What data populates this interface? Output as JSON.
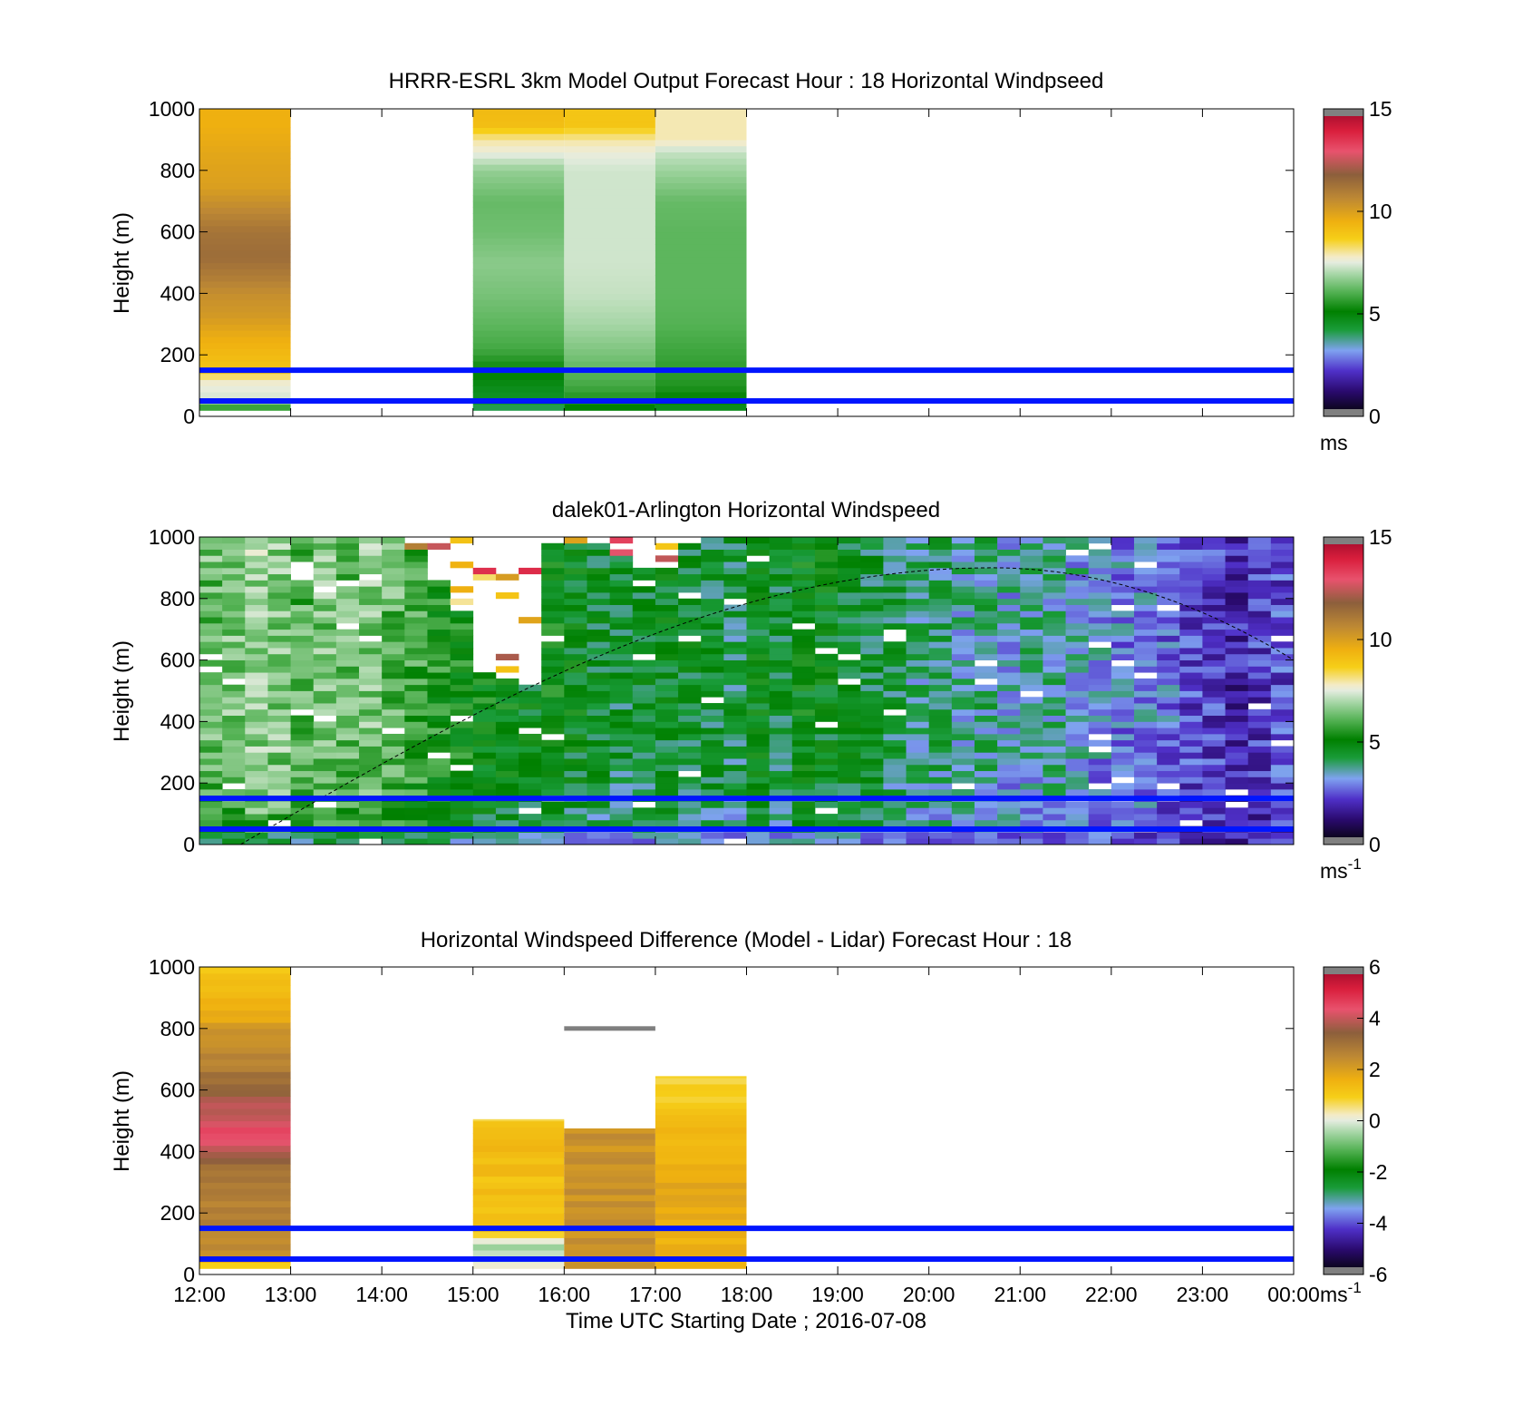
{
  "figure": {
    "x_ticks": [
      "12:00",
      "13:00",
      "14:00",
      "15:00",
      "16:00",
      "17:00",
      "18:00",
      "19:00",
      "20:00",
      "21:00",
      "22:00",
      "23:00",
      "00:00"
    ],
    "x_label": "Time UTC  Starting Date ; 2016-07-08",
    "reference_lines_m": [
      50,
      150
    ],
    "reference_line_color": "#0015ff"
  },
  "chart_data": [
    {
      "type": "heatmap",
      "title": "HRRR-ESRL 3km Model Output   Forecast Hour : 18 Horizontal Windpseed",
      "ylabel": "Height (m)",
      "xlim_hours": [
        12,
        24
      ],
      "ylim": [
        0,
        1000
      ],
      "y_ticks": [
        "0",
        "200",
        "400",
        "600",
        "800",
        "1000"
      ],
      "colorbar": {
        "min": 0,
        "max": 15,
        "ticks": [
          "0",
          "5",
          "10",
          "15"
        ],
        "unit": "ms",
        "unit_sup": ""
      },
      "columns": [
        {
          "start": 12,
          "end": 13,
          "top": 1000,
          "bottom": 20,
          "profile": [
            [
              20,
              5.2
            ],
            [
              40,
              6.2
            ],
            [
              70,
              7.4
            ],
            [
              110,
              7.7
            ],
            [
              160,
              9.1
            ],
            [
              200,
              9.3
            ],
            [
              260,
              9.7
            ],
            [
              330,
              10.3
            ],
            [
              400,
              10.6
            ],
            [
              450,
              11.1
            ],
            [
              520,
              11.6
            ],
            [
              600,
              11.4
            ],
            [
              680,
              10.7
            ],
            [
              750,
              10.1
            ],
            [
              850,
              9.9
            ],
            [
              950,
              9.6
            ],
            [
              1000,
              9.6
            ]
          ]
        },
        {
          "start": 15,
          "end": 16,
          "top": 1000,
          "bottom": 20,
          "profile": [
            [
              20,
              3.8
            ],
            [
              60,
              4.4
            ],
            [
              100,
              4.6
            ],
            [
              160,
              5.2
            ],
            [
              220,
              5.8
            ],
            [
              300,
              6.1
            ],
            [
              400,
              6.4
            ],
            [
              500,
              6.6
            ],
            [
              600,
              6.3
            ],
            [
              700,
              6.2
            ],
            [
              800,
              6.7
            ],
            [
              860,
              7.6
            ],
            [
              900,
              8.0
            ],
            [
              950,
              9.2
            ],
            [
              1000,
              9.3
            ]
          ]
        },
        {
          "start": 16,
          "end": 17,
          "top": 1000,
          "bottom": 20,
          "profile": [
            [
              20,
              4.8
            ],
            [
              60,
              5.4
            ],
            [
              100,
              5.8
            ],
            [
              200,
              6.4
            ],
            [
              300,
              6.9
            ],
            [
              400,
              7.2
            ],
            [
              500,
              7.3
            ],
            [
              600,
              7.3
            ],
            [
              700,
              7.3
            ],
            [
              800,
              7.3
            ],
            [
              860,
              7.6
            ],
            [
              900,
              8.0
            ],
            [
              950,
              9.0
            ],
            [
              1000,
              9.0
            ]
          ]
        },
        {
          "start": 17,
          "end": 18,
          "top": 1000,
          "bottom": 20,
          "profile": [
            [
              20,
              4.4
            ],
            [
              60,
              5.0
            ],
            [
              100,
              5.4
            ],
            [
              200,
              5.7
            ],
            [
              300,
              6.0
            ],
            [
              400,
              6.1
            ],
            [
              500,
              6.1
            ],
            [
              600,
              6.1
            ],
            [
              700,
              6.2
            ],
            [
              800,
              6.8
            ],
            [
              860,
              7.2
            ],
            [
              900,
              7.9
            ],
            [
              1000,
              7.9
            ]
          ]
        }
      ]
    },
    {
      "type": "heatmap",
      "title": "dalek01-Arlington  Horizontal Windspeed",
      "ylabel": "Height (m)",
      "xlim_hours": [
        12,
        24
      ],
      "ylim": [
        0,
        1000
      ],
      "y_ticks": [
        "0",
        "200",
        "400",
        "600",
        "800",
        "1000"
      ],
      "colorbar": {
        "min": 0,
        "max": 15,
        "ticks": [
          "0",
          "5",
          "10",
          "15"
        ],
        "unit": "ms",
        "unit_sup": "-1"
      },
      "sampling": {
        "start": 12.0,
        "step_hours": 0.25,
        "count": 48,
        "bin_m": 20
      },
      "column_tops_m": [
        1000,
        1000,
        1000,
        1000,
        1000,
        1000,
        1000,
        1000,
        1000,
        960,
        860,
        760,
        560,
        540,
        520,
        980,
        980,
        980,
        940,
        900,
        920,
        980,
        1000,
        1000,
        1000,
        1000,
        1000,
        1000,
        1000,
        1000,
        1000,
        1000,
        1000,
        1000,
        1000,
        1000,
        1000,
        1000,
        1000,
        1000,
        1000,
        1000,
        1000,
        1000,
        1000,
        1000,
        1000,
        1000
      ],
      "mean_speed_ms": [
        6.2,
        6.4,
        6.8,
        6.6,
        6.0,
        6.4,
        6.2,
        6.6,
        6.1,
        5.8,
        5.4,
        5.2,
        5.0,
        4.8,
        4.6,
        4.9,
        4.6,
        4.4,
        4.2,
        4.3,
        4.5,
        4.4,
        4.2,
        4.0,
        4.6,
        4.2,
        4.8,
        4.6,
        4.5,
        4.2,
        4.0,
        3.6,
        3.8,
        3.4,
        3.6,
        3.2,
        3.4,
        3.5,
        3.2,
        3.0,
        2.8,
        2.8,
        2.6,
        2.2,
        2.0,
        1.6,
        2.0,
        2.2
      ],
      "boundary_layer_curve": {
        "start_hour": 12.45,
        "peak_hour": 20.7,
        "peak_m": 900,
        "end_hour": 24,
        "end_m": 600
      }
    },
    {
      "type": "heatmap",
      "title": "Horizontal Windspeed Difference (Model - Lidar) Forecast Hour : 18",
      "ylabel": "Height (m)",
      "xlim_hours": [
        12,
        24
      ],
      "ylim": [
        0,
        1000
      ],
      "y_ticks": [
        "0",
        "200",
        "400",
        "600",
        "800",
        "1000"
      ],
      "colorbar": {
        "min": -6,
        "max": 6,
        "ticks": [
          "-6",
          "-4",
          "-2",
          "0",
          "2",
          "4",
          "6"
        ],
        "unit": "ms",
        "unit_sup": "-1"
      },
      "columns": [
        {
          "start": 12,
          "end": 13,
          "top": 1000,
          "bottom": 20,
          "profile": [
            [
              20,
              0.8
            ],
            [
              60,
              2.4
            ],
            [
              120,
              2.6
            ],
            [
              200,
              2.8
            ],
            [
              300,
              3.0
            ],
            [
              380,
              3.6
            ],
            [
              420,
              4.4
            ],
            [
              480,
              4.6
            ],
            [
              540,
              4.0
            ],
            [
              600,
              3.6
            ],
            [
              660,
              3.0
            ],
            [
              720,
              2.6
            ],
            [
              800,
              2.2
            ],
            [
              880,
              1.6
            ],
            [
              950,
              1.2
            ],
            [
              1000,
              1.0
            ]
          ]
        },
        {
          "start": 15,
          "end": 16,
          "top": 505,
          "bottom": 20,
          "profile": [
            [
              20,
              0.2
            ],
            [
              70,
              -0.3
            ],
            [
              90,
              -0.8
            ],
            [
              110,
              0.3
            ],
            [
              150,
              1.2
            ],
            [
              300,
              1.3
            ],
            [
              400,
              1.4
            ],
            [
              460,
              1.2
            ],
            [
              505,
              1.0
            ]
          ]
        },
        {
          "start": 16,
          "end": 17,
          "top": 475,
          "bottom": 20,
          "profile": [
            [
              20,
              2.3
            ],
            [
              100,
              2.4
            ],
            [
              200,
              2.4
            ],
            [
              300,
              2.4
            ],
            [
              400,
              2.4
            ],
            [
              420,
              2.3
            ],
            [
              450,
              2.4
            ],
            [
              475,
              2.0
            ]
          ]
        },
        {
          "start": 17,
          "end": 18,
          "top": 645,
          "bottom": 20,
          "profile": [
            [
              20,
              1.5
            ],
            [
              100,
              1.7
            ],
            [
              200,
              1.9
            ],
            [
              300,
              1.9
            ],
            [
              400,
              1.6
            ],
            [
              500,
              1.3
            ],
            [
              560,
              1.1
            ],
            [
              600,
              0.9
            ],
            [
              620,
              0.8
            ],
            [
              645,
              0.8
            ]
          ]
        }
      ],
      "segments": [
        {
          "start": 16.0,
          "end": 17.0,
          "height_m": 800,
          "color": "#7f7f7f"
        }
      ]
    }
  ]
}
